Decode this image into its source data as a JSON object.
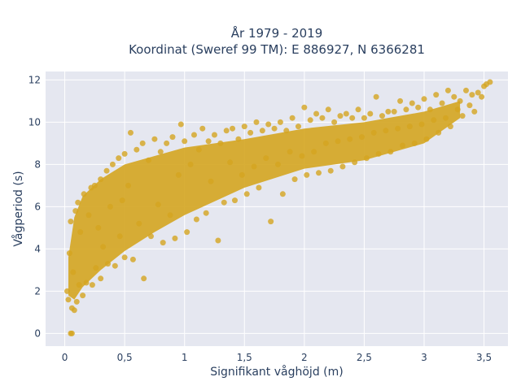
{
  "chart_data": {
    "type": "scatter",
    "title": "År 1979 - 2019",
    "subtitle": "Koordinat (Sweref 99 TM): E 886927, N 6366281",
    "xlabel": "Signifikant våghöjd (m)",
    "ylabel": "Vågperiod (s)",
    "xlim": [
      -0.16,
      3.7
    ],
    "ylim": [
      -0.6,
      12.4
    ],
    "x_ticks": [
      0,
      0.5,
      1,
      1.5,
      2,
      2.5,
      3,
      3.5
    ],
    "x_tick_labels": [
      "0",
      "0,5",
      "1",
      "1,5",
      "2",
      "2,5",
      "3",
      "3,5"
    ],
    "y_ticks": [
      0,
      2,
      4,
      6,
      8,
      10,
      12
    ],
    "y_tick_labels": [
      "0",
      "2",
      "4",
      "6",
      "8",
      "10",
      "12"
    ],
    "grid": true,
    "marker_color": "#d4a520",
    "background_color": "#e5e7f0",
    "series": [
      {
        "points": [
          [
            0.05,
            0.0
          ],
          [
            0.06,
            0.0
          ],
          [
            0.02,
            2.0
          ],
          [
            0.03,
            1.6
          ],
          [
            0.04,
            3.8
          ],
          [
            0.05,
            5.3
          ],
          [
            0.06,
            1.2
          ],
          [
            0.07,
            2.9
          ],
          [
            0.08,
            1.1
          ],
          [
            0.09,
            5.8
          ],
          [
            0.1,
            1.5
          ],
          [
            0.11,
            6.2
          ],
          [
            0.12,
            2.3
          ],
          [
            0.13,
            4.8
          ],
          [
            0.15,
            1.8
          ],
          [
            0.16,
            6.6
          ],
          [
            0.18,
            2.4
          ],
          [
            0.2,
            5.6
          ],
          [
            0.22,
            6.9
          ],
          [
            0.23,
            2.3
          ],
          [
            0.25,
            7.0
          ],
          [
            0.26,
            3.1
          ],
          [
            0.28,
            5.0
          ],
          [
            0.3,
            7.3
          ],
          [
            0.3,
            2.6
          ],
          [
            0.32,
            4.1
          ],
          [
            0.35,
            7.7
          ],
          [
            0.36,
            3.3
          ],
          [
            0.38,
            6.0
          ],
          [
            0.4,
            8.0
          ],
          [
            0.42,
            3.2
          ],
          [
            0.45,
            8.3
          ],
          [
            0.46,
            4.6
          ],
          [
            0.48,
            6.3
          ],
          [
            0.5,
            8.5
          ],
          [
            0.5,
            3.6
          ],
          [
            0.53,
            7.0
          ],
          [
            0.55,
            9.5
          ],
          [
            0.57,
            3.5
          ],
          [
            0.6,
            8.7
          ],
          [
            0.62,
            5.2
          ],
          [
            0.65,
            9.0
          ],
          [
            0.66,
            2.6
          ],
          [
            0.7,
            8.2
          ],
          [
            0.72,
            4.6
          ],
          [
            0.75,
            9.2
          ],
          [
            0.78,
            6.1
          ],
          [
            0.8,
            8.6
          ],
          [
            0.82,
            4.3
          ],
          [
            0.85,
            9.0
          ],
          [
            0.88,
            5.6
          ],
          [
            0.9,
            9.3
          ],
          [
            0.92,
            4.5
          ],
          [
            0.95,
            7.5
          ],
          [
            0.97,
            9.9
          ],
          [
            1.0,
            9.1
          ],
          [
            1.02,
            4.8
          ],
          [
            1.05,
            8.0
          ],
          [
            1.08,
            9.4
          ],
          [
            1.1,
            5.4
          ],
          [
            1.12,
            8.7
          ],
          [
            1.15,
            9.7
          ],
          [
            1.18,
            5.7
          ],
          [
            1.2,
            9.1
          ],
          [
            1.22,
            7.2
          ],
          [
            1.25,
            9.4
          ],
          [
            1.28,
            4.4
          ],
          [
            1.3,
            9.0
          ],
          [
            1.33,
            6.2
          ],
          [
            1.35,
            9.6
          ],
          [
            1.38,
            8.1
          ],
          [
            1.4,
            9.7
          ],
          [
            1.42,
            6.3
          ],
          [
            1.45,
            9.2
          ],
          [
            1.48,
            7.5
          ],
          [
            1.5,
            9.8
          ],
          [
            1.52,
            6.6
          ],
          [
            1.55,
            9.5
          ],
          [
            1.58,
            7.9
          ],
          [
            1.6,
            10.0
          ],
          [
            1.62,
            6.9
          ],
          [
            1.65,
            9.6
          ],
          [
            1.68,
            8.3
          ],
          [
            1.7,
            9.9
          ],
          [
            1.72,
            5.3
          ],
          [
            1.75,
            9.7
          ],
          [
            1.78,
            8.0
          ],
          [
            1.8,
            10.0
          ],
          [
            1.82,
            6.6
          ],
          [
            1.85,
            9.6
          ],
          [
            1.88,
            8.6
          ],
          [
            1.9,
            10.2
          ],
          [
            1.92,
            7.3
          ],
          [
            1.95,
            9.8
          ],
          [
            1.98,
            8.4
          ],
          [
            2.0,
            10.7
          ],
          [
            2.02,
            7.5
          ],
          [
            2.05,
            10.1
          ],
          [
            2.08,
            8.6
          ],
          [
            2.1,
            10.4
          ],
          [
            2.12,
            7.6
          ],
          [
            2.15,
            10.2
          ],
          [
            2.18,
            9.0
          ],
          [
            2.2,
            10.6
          ],
          [
            2.22,
            7.7
          ],
          [
            2.25,
            10.0
          ],
          [
            2.28,
            9.1
          ],
          [
            2.3,
            10.3
          ],
          [
            2.32,
            7.9
          ],
          [
            2.35,
            10.4
          ],
          [
            2.38,
            9.2
          ],
          [
            2.4,
            10.2
          ],
          [
            2.42,
            8.1
          ],
          [
            2.45,
            10.6
          ],
          [
            2.48,
            9.3
          ],
          [
            2.5,
            10.2
          ],
          [
            2.52,
            8.3
          ],
          [
            2.55,
            10.4
          ],
          [
            2.58,
            9.5
          ],
          [
            2.6,
            11.2
          ],
          [
            2.62,
            8.5
          ],
          [
            2.65,
            10.3
          ],
          [
            2.68,
            9.6
          ],
          [
            2.7,
            10.5
          ],
          [
            2.72,
            8.6
          ],
          [
            2.75,
            10.5
          ],
          [
            2.78,
            9.7
          ],
          [
            2.8,
            11.0
          ],
          [
            2.82,
            8.9
          ],
          [
            2.85,
            10.6
          ],
          [
            2.88,
            9.8
          ],
          [
            2.9,
            10.9
          ],
          [
            2.92,
            9.0
          ],
          [
            2.95,
            10.7
          ],
          [
            2.98,
            9.9
          ],
          [
            3.0,
            11.1
          ],
          [
            3.02,
            9.2
          ],
          [
            3.05,
            10.6
          ],
          [
            3.08,
            10.1
          ],
          [
            3.1,
            11.3
          ],
          [
            3.12,
            9.5
          ],
          [
            3.15,
            10.9
          ],
          [
            3.18,
            10.2
          ],
          [
            3.2,
            11.5
          ],
          [
            3.22,
            9.8
          ],
          [
            3.25,
            11.2
          ],
          [
            3.28,
            10.6
          ],
          [
            3.3,
            11.0
          ],
          [
            3.32,
            10.3
          ],
          [
            3.35,
            11.5
          ],
          [
            3.38,
            10.8
          ],
          [
            3.4,
            11.3
          ],
          [
            3.42,
            10.5
          ],
          [
            3.45,
            11.4
          ],
          [
            3.48,
            11.2
          ],
          [
            3.5,
            11.7
          ],
          [
            3.52,
            11.8
          ],
          [
            3.55,
            11.9
          ]
        ]
      }
    ]
  }
}
